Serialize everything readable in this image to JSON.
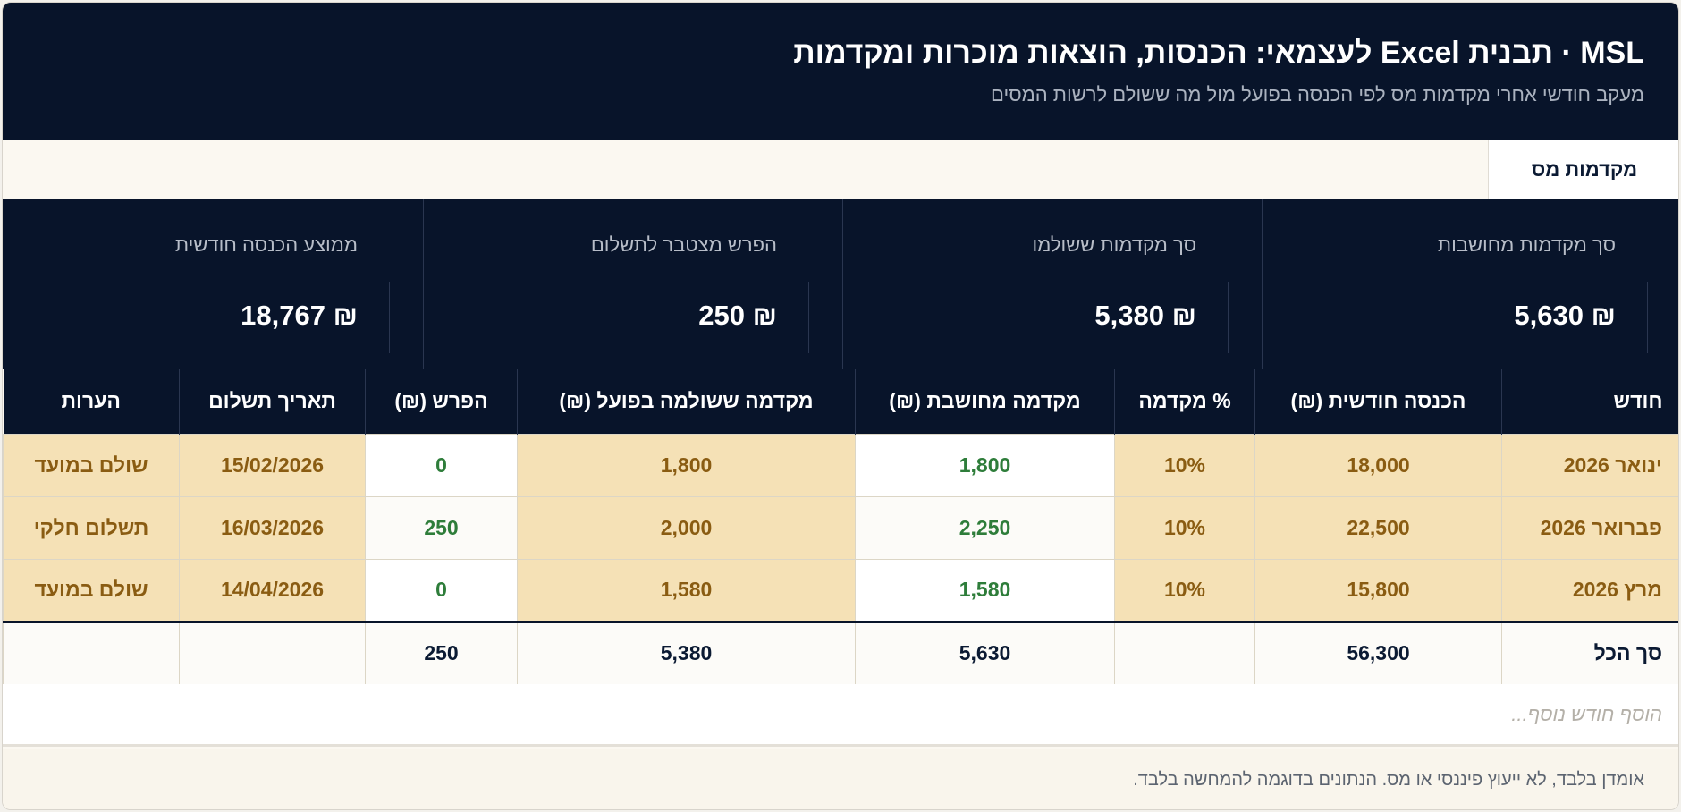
{
  "header": {
    "title": "MSL · תבנית Excel לעצמאי: הכנסות, הוצאות מוכרות ומקדמות",
    "subtitle": "מעקב חודשי אחרי מקדמות מס לפי הכנסה בפועל מול מה ששולם לרשות המסים"
  },
  "tabs": [
    {
      "label": "מקדמות מס",
      "active": true
    }
  ],
  "summary": [
    {
      "label": "סך מקדמות מחושבות",
      "value": "₪ 5,630"
    },
    {
      "label": "סך מקדמות ששולמו",
      "value": "₪ 5,380"
    },
    {
      "label": "הפרש מצטבר לתשלום",
      "value": "₪ 250"
    },
    {
      "label": "ממוצע הכנסה חודשית",
      "value": "₪ 18,767"
    }
  ],
  "table": {
    "headers": [
      "חודש",
      "הכנסה חודשית (₪)",
      "% מקדמה",
      "מקדמה מחושבת (₪)",
      "מקדמה ששולמה בפועל (₪)",
      "הפרש (₪)",
      "תאריך תשלום",
      "הערות"
    ],
    "rows": [
      {
        "month": "ינואר 2026",
        "income": "18,000",
        "pct": "10%",
        "calc": "1,800",
        "paid": "1,800",
        "diff": "0",
        "date": "15/02/2026",
        "notes": "שולם במועד"
      },
      {
        "month": "פברואר 2026",
        "income": "22,500",
        "pct": "10%",
        "calc": "2,250",
        "paid": "2,000",
        "diff": "250",
        "date": "16/03/2026",
        "notes": "תשלום חלקי"
      },
      {
        "month": "מרץ 2026",
        "income": "15,800",
        "pct": "10%",
        "calc": "1,580",
        "paid": "1,580",
        "diff": "0",
        "date": "14/04/2026",
        "notes": "שולם במועד"
      }
    ],
    "total": {
      "label": "סך הכל",
      "income": "56,300",
      "calc": "5,630",
      "paid": "5,380",
      "diff": "250"
    }
  },
  "add_row": {
    "placeholder": "הוסף חודש נוסף..."
  },
  "footer": {
    "disclaimer": "אומדן בלבד, לא ייעוץ פיננסי או מס. הנתונים בדוגמה להמחשה בלבד."
  },
  "colors": {
    "navy": "#08142a",
    "sand": "#f5e1b6",
    "brown_text": "#8a5c12",
    "green_text": "#2e7d3a"
  }
}
